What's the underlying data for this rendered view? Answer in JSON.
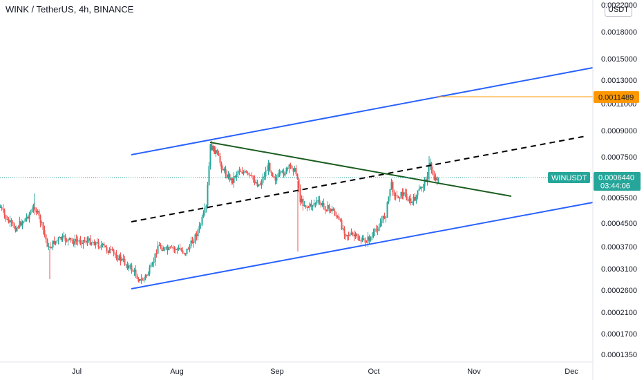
{
  "header": {
    "title": "WINK / TetherUS, 4h, BINANCE",
    "currency": "USDT"
  },
  "chart_data": {
    "type": "candlestick",
    "symbol": "WINUSDT",
    "x_ticks": [
      "Jul",
      "Aug",
      "Sep",
      "Oct",
      "Nov",
      "Dec"
    ],
    "y_ticks": [
      "0.0022000",
      "0.0018000",
      "0.0015000",
      "0.0013000",
      "0.0011000",
      "0.0009000",
      "0.0007500",
      "0.0005500",
      "0.0004500",
      "0.0003700",
      "0.0003100",
      "0.0002600",
      "0.0002100",
      "0.0001700",
      "0.0001350"
    ],
    "y_scale": "log",
    "price_label": {
      "value": "0.0006440",
      "countdown": "03:44:06",
      "color": "#26a69a"
    },
    "alert_level": {
      "value": "0.0011489",
      "color": "#ff9800"
    },
    "colors": {
      "up": "#26a69a",
      "down": "#ef5350",
      "channel": "#2962ff",
      "trendline": "#1b5e20",
      "midline": "#000000"
    }
  }
}
